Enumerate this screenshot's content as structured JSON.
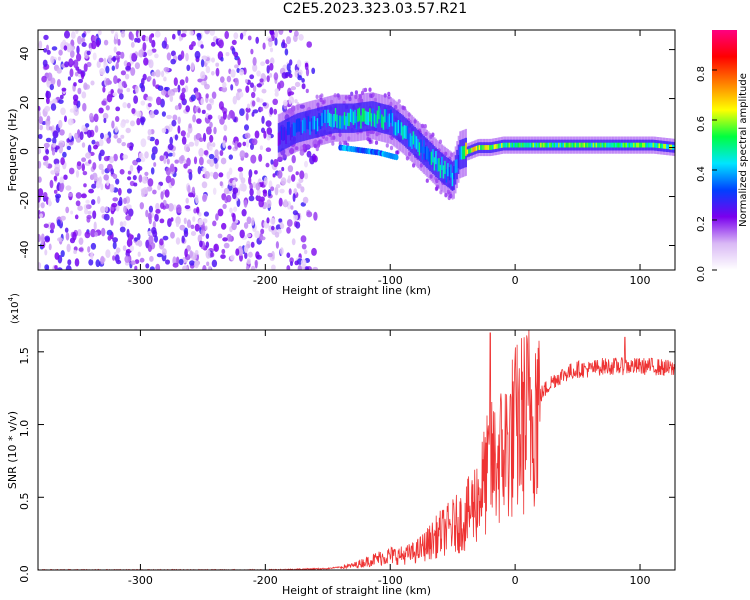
{
  "title": "C2E5.2023.323.03.57.R21",
  "chart_data": [
    {
      "type": "heatmap",
      "xlabel": "Height of straight line (km)",
      "ylabel": "Frequency (Hz)",
      "xlim": [
        -382,
        128
      ],
      "ylim": [
        -50,
        48
      ],
      "x_ticks": [
        -300,
        -200,
        -100,
        0,
        100
      ],
      "y_ticks": [
        -40,
        -20,
        0,
        20,
        40
      ],
      "colorbar": {
        "label": "Normalized spectral amplitude",
        "lim": [
          0,
          0.96
        ],
        "ticks": [
          0.0,
          0.2,
          0.4,
          0.6,
          0.8
        ],
        "colormap": [
          "#ffffff",
          "#d9b8f5",
          "#7a00ee",
          "#0040ff",
          "#00e5ff",
          "#00ff40",
          "#ffff00",
          "#ff8000",
          "#ff0000",
          "#ff0080"
        ]
      },
      "noise_region": {
        "x": [
          -382,
          -155
        ],
        "freq": [
          -50,
          48
        ],
        "amplitude": 0.25
      },
      "ridge": {
        "x": [
          -190,
          -175,
          -160,
          -145,
          -130,
          -115,
          -100,
          -90,
          -80,
          -70,
          -60,
          -50,
          -45,
          -40,
          -30,
          -20,
          -10,
          0,
          20,
          50,
          80,
          110,
          128
        ],
        "freq": [
          4,
          8,
          10,
          12,
          12,
          13,
          11,
          7,
          2,
          -3,
          -8,
          -12,
          -3,
          -2,
          0,
          0,
          1,
          1,
          1,
          1,
          1,
          1,
          0
        ],
        "amplitude": [
          0.25,
          0.3,
          0.35,
          0.4,
          0.45,
          0.45,
          0.4,
          0.4,
          0.4,
          0.4,
          0.4,
          0.35,
          0.3,
          0.6,
          0.6,
          0.55,
          0.5,
          0.5,
          0.5,
          0.5,
          0.5,
          0.5,
          0.5
        ]
      },
      "secondary_ridge": {
        "x": [
          -140,
          -125,
          -110,
          -95
        ],
        "freq": [
          0,
          -1,
          -2,
          -4
        ]
      }
    },
    {
      "type": "line",
      "xlabel": "Height of straight line (km)",
      "ylabel": "SNR (10 * v/v)",
      "y_exponent": "4",
      "xlim": [
        -382,
        128
      ],
      "ylim": [
        0,
        1.65
      ],
      "x_ticks": [
        -300,
        -200,
        -100,
        0,
        100
      ],
      "y_ticks": [
        0.0,
        0.5,
        1.0,
        1.5
      ],
      "series": [
        {
          "color": "#ee3333",
          "x": [
            -382,
            -300,
            -200,
            -150,
            -130,
            -110,
            -100,
            -90,
            -80,
            -70,
            -60,
            -50,
            -40,
            -30,
            -20,
            -10,
            0,
            10,
            20,
            30,
            40,
            50,
            60,
            70,
            80,
            90,
            100,
            110,
            128
          ],
          "y": [
            0.0,
            0.0,
            0.0,
            0.01,
            0.03,
            0.08,
            0.1,
            0.1,
            0.12,
            0.18,
            0.25,
            0.3,
            0.35,
            0.5,
            0.7,
            0.8,
            0.95,
            1.05,
            1.2,
            1.3,
            1.35,
            1.38,
            1.38,
            1.4,
            1.4,
            1.4,
            1.4,
            1.4,
            1.38
          ]
        }
      ],
      "spikes": [
        {
          "x": -20,
          "y": 1.63
        },
        {
          "x": 88,
          "y": 1.6
        }
      ]
    }
  ]
}
